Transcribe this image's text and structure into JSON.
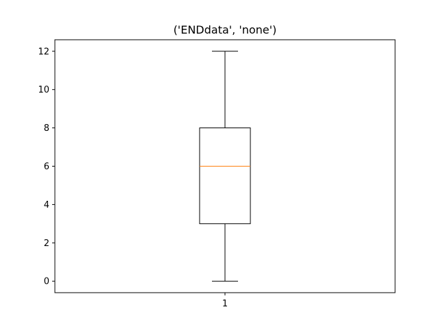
{
  "chart_data": {
    "type": "box",
    "title": "('ENDdata', 'none')",
    "xlabel": "",
    "ylabel": "",
    "categories": [
      "1"
    ],
    "boxes": [
      {
        "category": "1",
        "whislo": 0,
        "q1": 3,
        "med": 6,
        "q3": 8,
        "whishi": 12
      }
    ],
    "ylim": [
      -0.6,
      12.6
    ],
    "yticks": [
      0,
      2,
      4,
      6,
      8,
      10,
      12
    ],
    "ytick_labels": [
      "0",
      "2",
      "4",
      "6",
      "8",
      "10",
      "12"
    ],
    "grid": false,
    "colors": {
      "box": "#000000",
      "median": "#ff7f0e",
      "whisker": "#000000"
    }
  }
}
